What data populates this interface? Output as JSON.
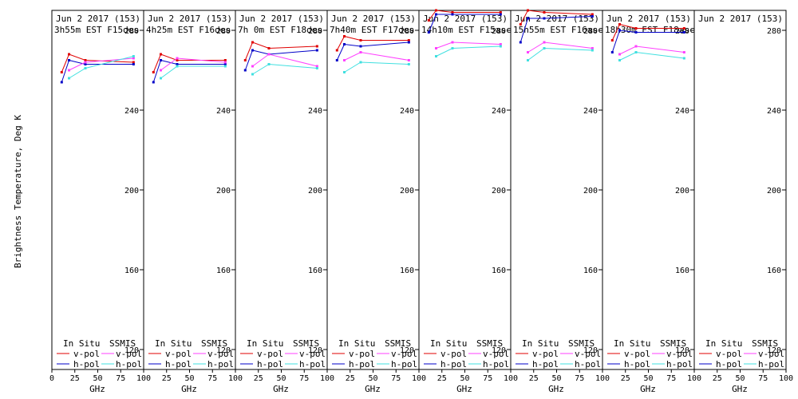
{
  "y_axis_label": "Brightness Temperature, Deg K",
  "legend": {
    "in_situ_label": "In Situ",
    "ssmis_label": "SSMIS",
    "v_pol_label": "v-pol",
    "h_pol_label": "h-pol"
  },
  "colors": {
    "in_situ_v": "#e00000",
    "in_situ_h": "#0000c8",
    "ssmis_v": "#ff40ff",
    "ssmis_h": "#40e0e0"
  },
  "chart_data": {
    "type": "line",
    "xlabel": "GHz",
    "ylabel": "Brightness Temperature, Deg K",
    "xlim": [
      0,
      100
    ],
    "ylim": [
      110,
      290
    ],
    "y_ticks": [
      120,
      160,
      200,
      240,
      280
    ],
    "x_tick_labels": [
      "0",
      "25",
      "50",
      "75",
      "100"
    ],
    "frequencies_ghz": [
      10.7,
      18.7,
      36.5,
      89.0
    ],
    "panels": [
      {
        "title": "Jun 2 2017 (153)",
        "subtitle": "3h55m EST F15des",
        "series": [
          {
            "name": "In Situ v-pol",
            "values": [
              259,
              268,
              265,
              264
            ]
          },
          {
            "name": "In Situ h-pol",
            "values": [
              254,
              265,
              263,
              263
            ]
          },
          {
            "name": "SSMIS v-pol",
            "values": [
              null,
              260,
              264,
              266
            ]
          },
          {
            "name": "SSMIS h-pol",
            "values": [
              null,
              256,
              261,
              267
            ]
          }
        ]
      },
      {
        "title": "Jun 2 2017 (153)",
        "subtitle": "4h25m EST F16des",
        "series": [
          {
            "name": "In Situ v-pol",
            "values": [
              259,
              268,
              265,
              265
            ]
          },
          {
            "name": "In Situ h-pol",
            "values": [
              254,
              265,
              263,
              263
            ]
          },
          {
            "name": "SSMIS v-pol",
            "values": [
              null,
              260,
              266,
              264
            ]
          },
          {
            "name": "SSMIS h-pol",
            "values": [
              null,
              256,
              262,
              262
            ]
          }
        ]
      },
      {
        "title": "Jun 2 2017 (153)",
        "subtitle": "7h 0m EST F18des",
        "series": [
          {
            "name": "In Situ v-pol",
            "values": [
              265,
              274,
              271,
              272
            ]
          },
          {
            "name": "In Situ h-pol",
            "values": [
              260,
              270,
              268,
              270
            ]
          },
          {
            "name": "SSMIS v-pol",
            "values": [
              null,
              262,
              268,
              262
            ]
          },
          {
            "name": "SSMIS h-pol",
            "values": [
              null,
              258,
              263,
              261
            ]
          }
        ]
      },
      {
        "title": "Jun 2 2017 (153)",
        "subtitle": "7h40m EST F17des",
        "series": [
          {
            "name": "In Situ v-pol",
            "values": [
              270,
              277,
              275,
              275
            ]
          },
          {
            "name": "In Situ h-pol",
            "values": [
              265,
              273,
              272,
              274
            ]
          },
          {
            "name": "SSMIS v-pol",
            "values": [
              null,
              265,
              269,
              265
            ]
          },
          {
            "name": "SSMIS h-pol",
            "values": [
              null,
              259,
              264,
              263
            ]
          }
        ]
      },
      {
        "title": "Jun 2 2017 (153)",
        "subtitle": "14h10m EST F15asc",
        "series": [
          {
            "name": "In Situ v-pol",
            "values": [
              285,
              290,
              289,
              289
            ]
          },
          {
            "name": "In Situ h-pol",
            "values": [
              279,
              288,
              288,
              288
            ]
          },
          {
            "name": "SSMIS v-pol",
            "values": [
              null,
              271,
              274,
              273
            ]
          },
          {
            "name": "SSMIS h-pol",
            "values": [
              null,
              267,
              271,
              272
            ]
          }
        ]
      },
      {
        "title": "Jun 2 2017 (153)",
        "subtitle": "15h55m EST F16asc",
        "series": [
          {
            "name": "In Situ v-pol",
            "values": [
              283,
              290,
              289,
              288
            ]
          },
          {
            "name": "In Situ h-pol",
            "values": [
              274,
              286,
              286,
              287
            ]
          },
          {
            "name": "SSMIS v-pol",
            "values": [
              null,
              269,
              274,
              271
            ]
          },
          {
            "name": "SSMIS h-pol",
            "values": [
              null,
              265,
              271,
              270
            ]
          }
        ]
      },
      {
        "title": "Jun 2 2017 (153)",
        "subtitle": "18h30m EST F18asc",
        "series": [
          {
            "name": "In Situ v-pol",
            "values": [
              275,
              283,
              281,
              281
            ]
          },
          {
            "name": "In Situ h-pol",
            "values": [
              269,
              280,
              279,
              279
            ]
          },
          {
            "name": "SSMIS v-pol",
            "values": [
              null,
              268,
              272,
              269
            ]
          },
          {
            "name": "SSMIS h-pol",
            "values": [
              null,
              265,
              269,
              266
            ]
          }
        ]
      },
      {
        "title": "Jun 2 2017 (153)",
        "subtitle": "",
        "series": []
      }
    ]
  }
}
